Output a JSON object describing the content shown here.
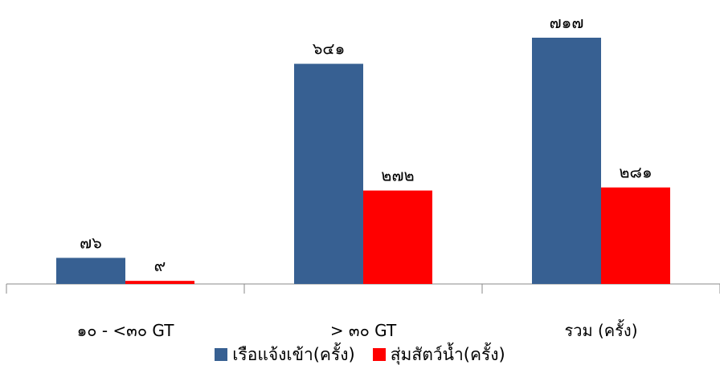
{
  "chart_data": {
    "type": "bar",
    "categories": [
      "๑๐ - <๓๐ GT",
      "> ๓๐ GT",
      "รวม (ครั้ง)"
    ],
    "series": [
      {
        "name": "เรือแจ้งเข้า(ครั้ง)",
        "values": [
          76,
          641,
          717
        ],
        "labels": [
          "๗๖",
          "๖๔๑",
          "๗๑๗"
        ],
        "color": "#376092"
      },
      {
        "name": "สุ่มสัตว์น้ำ(ครั้ง)",
        "values": [
          9,
          272,
          281
        ],
        "labels": [
          "๙",
          "๒๗๒",
          "๒๘๑"
        ],
        "color": "#ff0000"
      }
    ],
    "ylim": [
      0,
      800
    ],
    "grid": false,
    "legend_position": "bottom"
  }
}
